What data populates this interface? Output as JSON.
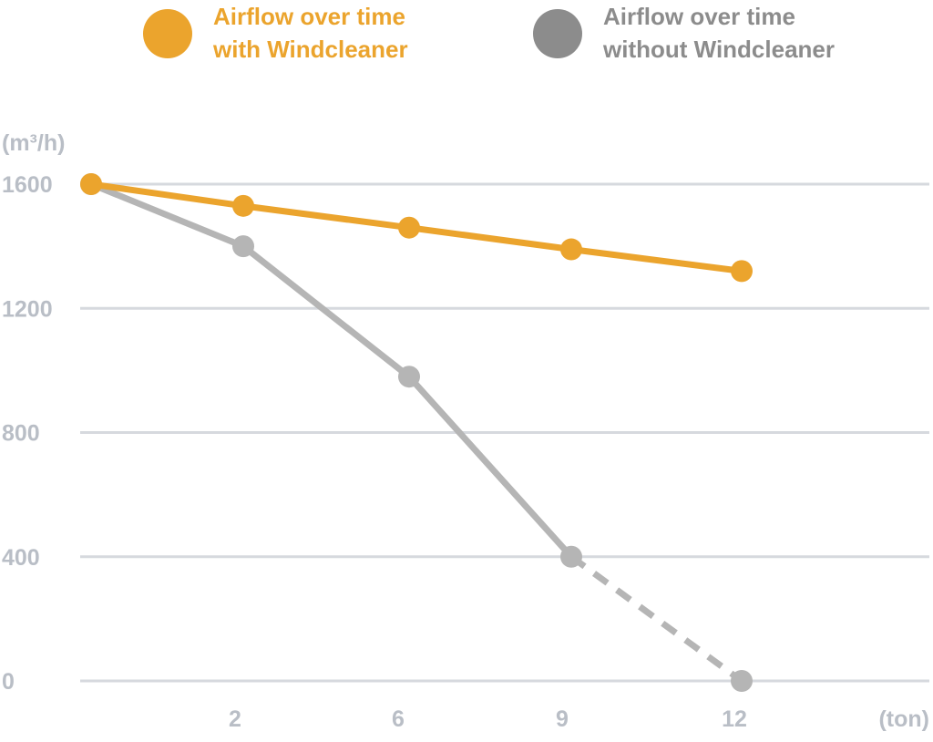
{
  "chart_data": {
    "type": "line",
    "ylabel": "(m³/h)",
    "xlabel": "(ton)",
    "x_ticks": [
      "2",
      "6",
      "9",
      "12"
    ],
    "y_ticks": [
      "0",
      "400",
      "800",
      "1200",
      "1600"
    ],
    "ylim": [
      0,
      1600
    ],
    "grid": true,
    "legend_position": "top",
    "series": [
      {
        "name": "Airflow over time with Windcleaner",
        "legend_lines": [
          "Airflow over time",
          "with Windcleaner"
        ],
        "color": "#eba42d",
        "x": [
          0,
          2,
          6,
          9,
          12
        ],
        "y": [
          1600,
          1530,
          1460,
          1390,
          1320
        ]
      },
      {
        "name": "Airflow over time without Windcleaner",
        "legend_lines": [
          "Airflow over time",
          "without Windcleaner"
        ],
        "color": "#b5b5b5",
        "x": [
          0,
          2,
          6,
          9,
          12
        ],
        "y": [
          1600,
          1400,
          980,
          400,
          0
        ],
        "dashed_from_index": 3
      }
    ]
  }
}
